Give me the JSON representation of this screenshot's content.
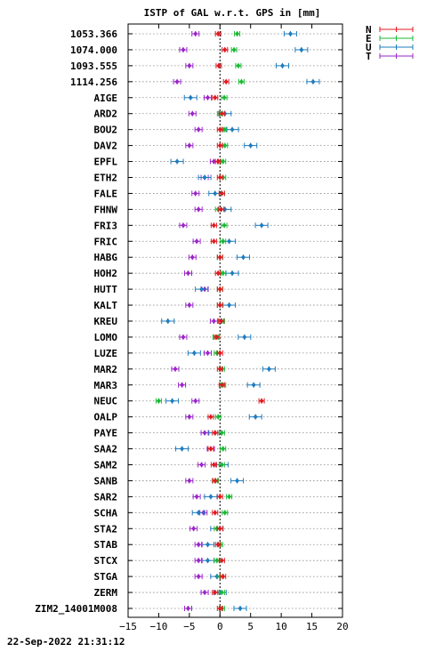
{
  "chart_data": {
    "type": "scatter",
    "title": "ISTP of GAL w.r.t. GPS in [mm]",
    "xlim": [
      -15,
      20
    ],
    "xticks": [
      -15,
      -10,
      -5,
      0,
      5,
      10,
      15,
      20
    ],
    "timestamp": "22-Sep-2022 21:31:12",
    "grid": true,
    "legend_position": "top-right",
    "series": [
      {
        "name": "N",
        "color": "#e0181f"
      },
      {
        "name": "E",
        "color": "#19b833"
      },
      {
        "name": "U",
        "color": "#1f7cbf"
      },
      {
        "name": "T",
        "color": "#9a26c8"
      }
    ],
    "categories": [
      "1053.366",
      "1074.000",
      "1093.555",
      "1114.256",
      "AIGE",
      "ARD2",
      "BOU2",
      "DAV2",
      "EPFL",
      "ETH2",
      "FALE",
      "FHNW",
      "FRI3",
      "FRIC",
      "HABG",
      "HOH2",
      "HUTT",
      "KALT",
      "KREU",
      "LOMO",
      "LUZE",
      "MAR2",
      "MAR3",
      "NEUC",
      "OALP",
      "PAYE",
      "SAA2",
      "SAM2",
      "SANB",
      "SAR2",
      "SCHA",
      "STA2",
      "STAB",
      "STCX",
      "STGA",
      "ZERM",
      "ZIM2_14001M008"
    ],
    "values": {
      "N": [
        -0.3,
        0.8,
        -0.2,
        1.0,
        -0.8,
        0.3,
        0.0,
        0.0,
        -0.3,
        0.0,
        0.3,
        0.2,
        -1.0,
        -1.0,
        0.0,
        -0.3,
        0.0,
        0.0,
        0.2,
        -0.5,
        0.0,
        0.0,
        0.3,
        6.8,
        -1.5,
        -0.8,
        -1.5,
        -1.0,
        -0.8,
        0.0,
        -0.8,
        0.0,
        -0.3,
        0.3,
        0.5,
        -0.8,
        0.0
      ],
      "E": [
        2.8,
        2.3,
        3.0,
        3.5,
        0.7,
        0.0,
        0.7,
        0.8,
        0.5,
        0.5,
        0.3,
        -0.3,
        0.7,
        0.5,
        0.0,
        0.5,
        0.0,
        0.0,
        0.3,
        -0.7,
        -0.5,
        0.3,
        0.5,
        -10.0,
        -0.3,
        0.3,
        0.5,
        0.3,
        -0.7,
        1.5,
        0.8,
        -0.5,
        0.0,
        -0.5,
        0.0,
        0.3,
        0.3
      ],
      "U": [
        11.5,
        13.3,
        10.2,
        15.2,
        -4.8,
        0.8,
        2.0,
        5.0,
        -7.0,
        -2.5,
        -0.8,
        0.8,
        6.8,
        1.5,
        3.8,
        2.0,
        -3.0,
        1.5,
        -8.5,
        4.0,
        -4.2,
        8.0,
        5.5,
        -7.8,
        5.8,
        -0.8,
        -6.2,
        0.3,
        2.8,
        -1.5,
        -3.5,
        -0.5,
        -2.0,
        -2.0,
        -0.5,
        0.0,
        3.3
      ],
      "T": [
        -4.0,
        -6.0,
        -5.0,
        -7.0,
        -2.0,
        -4.5,
        -3.5,
        -5.0,
        -1.0,
        -2.5,
        -4.0,
        -3.5,
        -6.0,
        -3.8,
        -4.5,
        -5.2,
        -2.5,
        -5.0,
        -1.0,
        -6.0,
        -2.0,
        -7.3,
        -6.2,
        -4.0,
        -5.0,
        -2.5,
        -1.5,
        -3.0,
        -5.0,
        -3.8,
        -2.7,
        -4.3,
        -3.5,
        -3.5,
        -3.5,
        -2.5,
        -5.2
      ]
    }
  }
}
